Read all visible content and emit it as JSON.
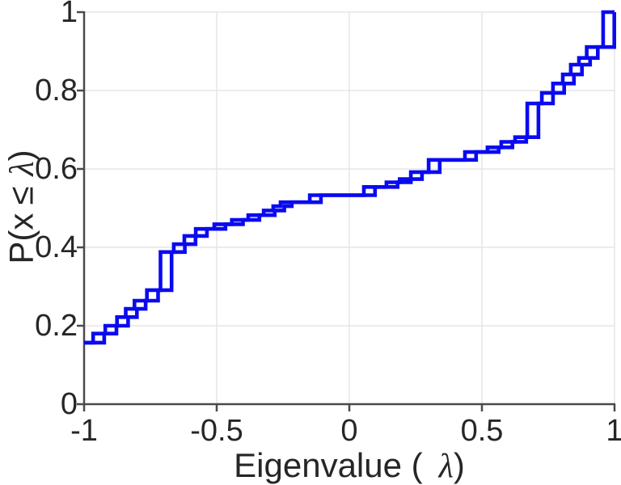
{
  "figure": {
    "background": "#ffffff"
  },
  "chart_data": {
    "type": "line",
    "subtype": "empirical-cdf-staircase",
    "title": "",
    "xlabel": "Eigenvalue ( λ)",
    "ylabel": "P(x ≤ λ)",
    "xlabel_p1": "Eigenvalue (",
    "xlabel_lambda": "λ",
    "xlabel_close": ")",
    "ylabel_p1": "P(x",
    "ylabel_leq": "≤",
    "ylabel_lambda": "λ",
    "ylabel_close": ")",
    "xlim": [
      -1,
      1
    ],
    "ylim": [
      0,
      1
    ],
    "x_tick_values": [
      -1,
      -0.5,
      0,
      0.5,
      1
    ],
    "x_tick_labels": [
      "-1",
      "-0.5",
      "0",
      "0.5",
      "1"
    ],
    "y_tick_values": [
      0,
      0.2,
      0.4,
      0.6,
      0.8,
      1
    ],
    "y_tick_labels": [
      "0",
      "0.2",
      "0.4",
      "0.6",
      "0.8",
      "1"
    ],
    "grid": true,
    "legend": null,
    "line_color": "#0a0af0",
    "line_width": 4.6,
    "axis_color": "#4a4a4a",
    "grid_color": "#e5e5e5",
    "text_color": "#262626",
    "series": [
      {
        "name": "ecdf-curve-a",
        "x_offset": 0
      },
      {
        "name": "ecdf-curve-b",
        "x_offset": 0.042
      }
    ],
    "start_point": [
      -1,
      0.157
    ],
    "step_points": [
      [
        -0.966,
        0.18
      ],
      [
        -0.92,
        0.2
      ],
      [
        -0.876,
        0.222
      ],
      [
        -0.843,
        0.243
      ],
      [
        -0.81,
        0.264
      ],
      [
        -0.763,
        0.291
      ],
      [
        -0.712,
        0.388
      ],
      [
        -0.662,
        0.408
      ],
      [
        -0.622,
        0.429
      ],
      [
        -0.579,
        0.447
      ],
      [
        -0.509,
        0.459
      ],
      [
        -0.443,
        0.47
      ],
      [
        -0.381,
        0.482
      ],
      [
        -0.323,
        0.494
      ],
      [
        -0.287,
        0.505
      ],
      [
        -0.259,
        0.515
      ],
      [
        -0.149,
        0.533
      ],
      [
        0.055,
        0.554
      ],
      [
        0.14,
        0.566
      ],
      [
        0.19,
        0.574
      ],
      [
        0.232,
        0.592
      ],
      [
        0.299,
        0.623
      ],
      [
        0.436,
        0.643
      ],
      [
        0.521,
        0.655
      ],
      [
        0.573,
        0.669
      ],
      [
        0.625,
        0.681
      ],
      [
        0.671,
        0.767
      ],
      [
        0.726,
        0.794
      ],
      [
        0.768,
        0.818
      ],
      [
        0.805,
        0.841
      ],
      [
        0.835,
        0.866
      ],
      [
        0.866,
        0.883
      ],
      [
        0.895,
        0.911
      ],
      [
        0.957,
        1.0
      ]
    ]
  }
}
